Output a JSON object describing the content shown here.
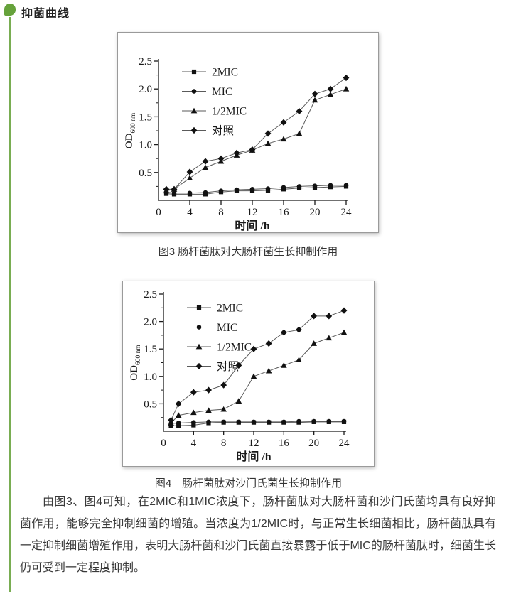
{
  "page": {
    "background": "#ffffff",
    "accent_green": "#66a23b"
  },
  "header": {
    "title": "抑菌曲线",
    "icon": "leaf-icon"
  },
  "figure3": {
    "caption": "图3 肠杆菌肽对大肠杆菌生长抑制作用"
  },
  "figure4": {
    "caption": "图4　肠杆菌肽对沙门氏菌生长抑制作用"
  },
  "paragraph": "由图3、图4可知，在2MIC和1MIC浓度下，肠杆菌肽对大肠杆菌和沙门氏菌均具有良好抑菌作用，能够完全抑制细菌的增殖。当浓度为1/2MIC时，与正常生长细菌相比，肠杆菌肽具有一定抑制细菌增殖作用，表明大肠杆菌和沙门氏菌直接暴露于低于MIC的肠杆菌肽时，细菌生长仍可受到一定程度抑制。",
  "chart_data": [
    {
      "type": "line",
      "figure": "图3",
      "title": "肠杆菌肽对大肠杆菌生长抑制作用",
      "xlabel": "时间 /h",
      "ylabel_main": "OD",
      "ylabel_sub": "600 nm",
      "xlim": [
        0,
        24
      ],
      "ylim": [
        0,
        2.5
      ],
      "xticks": [
        0,
        4,
        8,
        12,
        16,
        20,
        24
      ],
      "yticks": [
        0.5,
        1.0,
        1.5,
        2.0,
        2.5
      ],
      "grid": false,
      "legend_position": "upper-left",
      "x": [
        1,
        2,
        4,
        6,
        8,
        10,
        12,
        14,
        16,
        18,
        20,
        22,
        24
      ],
      "series": [
        {
          "name": "2MIC",
          "marker": "square",
          "values": [
            0.12,
            0.11,
            0.11,
            0.11,
            0.15,
            0.17,
            0.17,
            0.18,
            0.2,
            0.22,
            0.23,
            0.24,
            0.25
          ]
        },
        {
          "name": "MIC",
          "marker": "circle",
          "values": [
            0.15,
            0.13,
            0.13,
            0.14,
            0.17,
            0.19,
            0.2,
            0.21,
            0.23,
            0.25,
            0.26,
            0.27,
            0.27
          ]
        },
        {
          "name": "1/2MIC",
          "marker": "triangle",
          "values": [
            0.17,
            0.2,
            0.4,
            0.59,
            0.7,
            0.81,
            0.9,
            1.02,
            1.1,
            1.2,
            1.8,
            1.9,
            2.0
          ]
        },
        {
          "name": "对照",
          "marker": "diamond",
          "values": [
            0.2,
            0.2,
            0.51,
            0.7,
            0.75,
            0.85,
            0.91,
            1.2,
            1.4,
            1.6,
            1.91,
            2.0,
            2.2
          ]
        }
      ]
    },
    {
      "type": "line",
      "figure": "图4",
      "title": "肠杆菌肽对沙门氏菌生长抑制作用",
      "xlabel": "时间 /h",
      "ylabel_main": "OD",
      "ylabel_sub": "600 nm",
      "xlim": [
        0,
        24
      ],
      "ylim": [
        0,
        2.5
      ],
      "xticks": [
        0,
        4,
        8,
        12,
        16,
        20,
        24
      ],
      "yticks": [
        0.5,
        1.0,
        1.5,
        2.0,
        2.5
      ],
      "grid": false,
      "legend_position": "upper-left",
      "x": [
        1,
        2,
        4,
        6,
        8,
        10,
        12,
        14,
        16,
        18,
        20,
        22,
        24
      ],
      "series": [
        {
          "name": "2MIC",
          "marker": "square",
          "values": [
            0.1,
            0.1,
            0.11,
            0.15,
            0.16,
            0.16,
            0.16,
            0.16,
            0.16,
            0.16,
            0.17,
            0.17,
            0.17
          ]
        },
        {
          "name": "MIC",
          "marker": "circle",
          "values": [
            0.14,
            0.15,
            0.16,
            0.17,
            0.17,
            0.17,
            0.17,
            0.17,
            0.17,
            0.18,
            0.18,
            0.18,
            0.18
          ]
        },
        {
          "name": "1/2MIC",
          "marker": "triangle",
          "values": [
            0.15,
            0.29,
            0.34,
            0.38,
            0.4,
            0.55,
            1.0,
            1.1,
            1.2,
            1.3,
            1.6,
            1.7,
            1.8
          ]
        },
        {
          "name": "对照",
          "marker": "diamond",
          "values": [
            0.2,
            0.5,
            0.71,
            0.75,
            0.84,
            1.2,
            1.5,
            1.6,
            1.8,
            1.85,
            2.1,
            2.1,
            2.2
          ]
        }
      ]
    }
  ]
}
